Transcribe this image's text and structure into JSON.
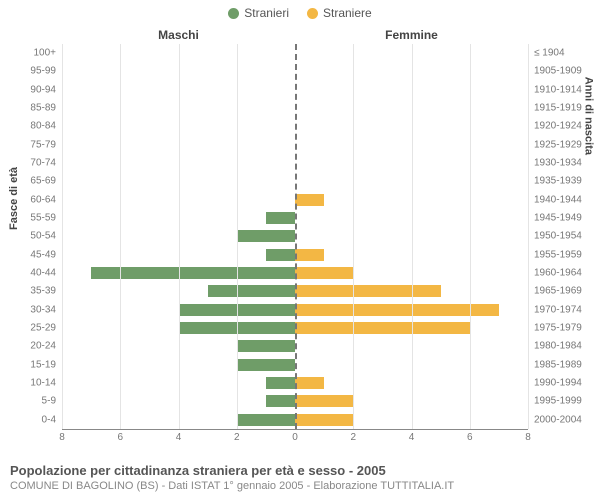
{
  "legend": {
    "male": {
      "label": "Stranieri",
      "color": "#6f9d68"
    },
    "female": {
      "label": "Straniere",
      "color": "#f3b744"
    }
  },
  "headers": {
    "left": "Maschi",
    "right": "Femmine"
  },
  "y_labels": {
    "left": "Fasce di età",
    "right": "Anni di nascita"
  },
  "chart": {
    "type": "population-pyramid",
    "x_max": 8,
    "x_ticks": [
      8,
      6,
      4,
      2,
      0,
      2,
      4,
      6,
      8
    ],
    "grid_color": "#e4e4e4",
    "center_line_color": "#777777",
    "background_color": "#ffffff",
    "rows": [
      {
        "age": "100+",
        "birth": "≤ 1904",
        "m": 0,
        "f": 0
      },
      {
        "age": "95-99",
        "birth": "1905-1909",
        "m": 0,
        "f": 0
      },
      {
        "age": "90-94",
        "birth": "1910-1914",
        "m": 0,
        "f": 0
      },
      {
        "age": "85-89",
        "birth": "1915-1919",
        "m": 0,
        "f": 0
      },
      {
        "age": "80-84",
        "birth": "1920-1924",
        "m": 0,
        "f": 0
      },
      {
        "age": "75-79",
        "birth": "1925-1929",
        "m": 0,
        "f": 0
      },
      {
        "age": "70-74",
        "birth": "1930-1934",
        "m": 0,
        "f": 0
      },
      {
        "age": "65-69",
        "birth": "1935-1939",
        "m": 0,
        "f": 0
      },
      {
        "age": "60-64",
        "birth": "1940-1944",
        "m": 0,
        "f": 1
      },
      {
        "age": "55-59",
        "birth": "1945-1949",
        "m": 1,
        "f": 0
      },
      {
        "age": "50-54",
        "birth": "1950-1954",
        "m": 2,
        "f": 0
      },
      {
        "age": "45-49",
        "birth": "1955-1959",
        "m": 1,
        "f": 1
      },
      {
        "age": "40-44",
        "birth": "1960-1964",
        "m": 7,
        "f": 2
      },
      {
        "age": "35-39",
        "birth": "1965-1969",
        "m": 3,
        "f": 5
      },
      {
        "age": "30-34",
        "birth": "1970-1974",
        "m": 4,
        "f": 7
      },
      {
        "age": "25-29",
        "birth": "1975-1979",
        "m": 4,
        "f": 6
      },
      {
        "age": "20-24",
        "birth": "1980-1984",
        "m": 2,
        "f": 0
      },
      {
        "age": "15-19",
        "birth": "1985-1989",
        "m": 2,
        "f": 0
      },
      {
        "age": "10-14",
        "birth": "1990-1994",
        "m": 1,
        "f": 1
      },
      {
        "age": "5-9",
        "birth": "1995-1999",
        "m": 1,
        "f": 2
      },
      {
        "age": "0-4",
        "birth": "2000-2004",
        "m": 2,
        "f": 2
      }
    ]
  },
  "footer": {
    "title": "Popolazione per cittadinanza straniera per età e sesso - 2005",
    "subtitle": "COMUNE DI BAGOLINO (BS) - Dati ISTAT 1° gennaio 2005 - Elaborazione TUTTITALIA.IT"
  }
}
